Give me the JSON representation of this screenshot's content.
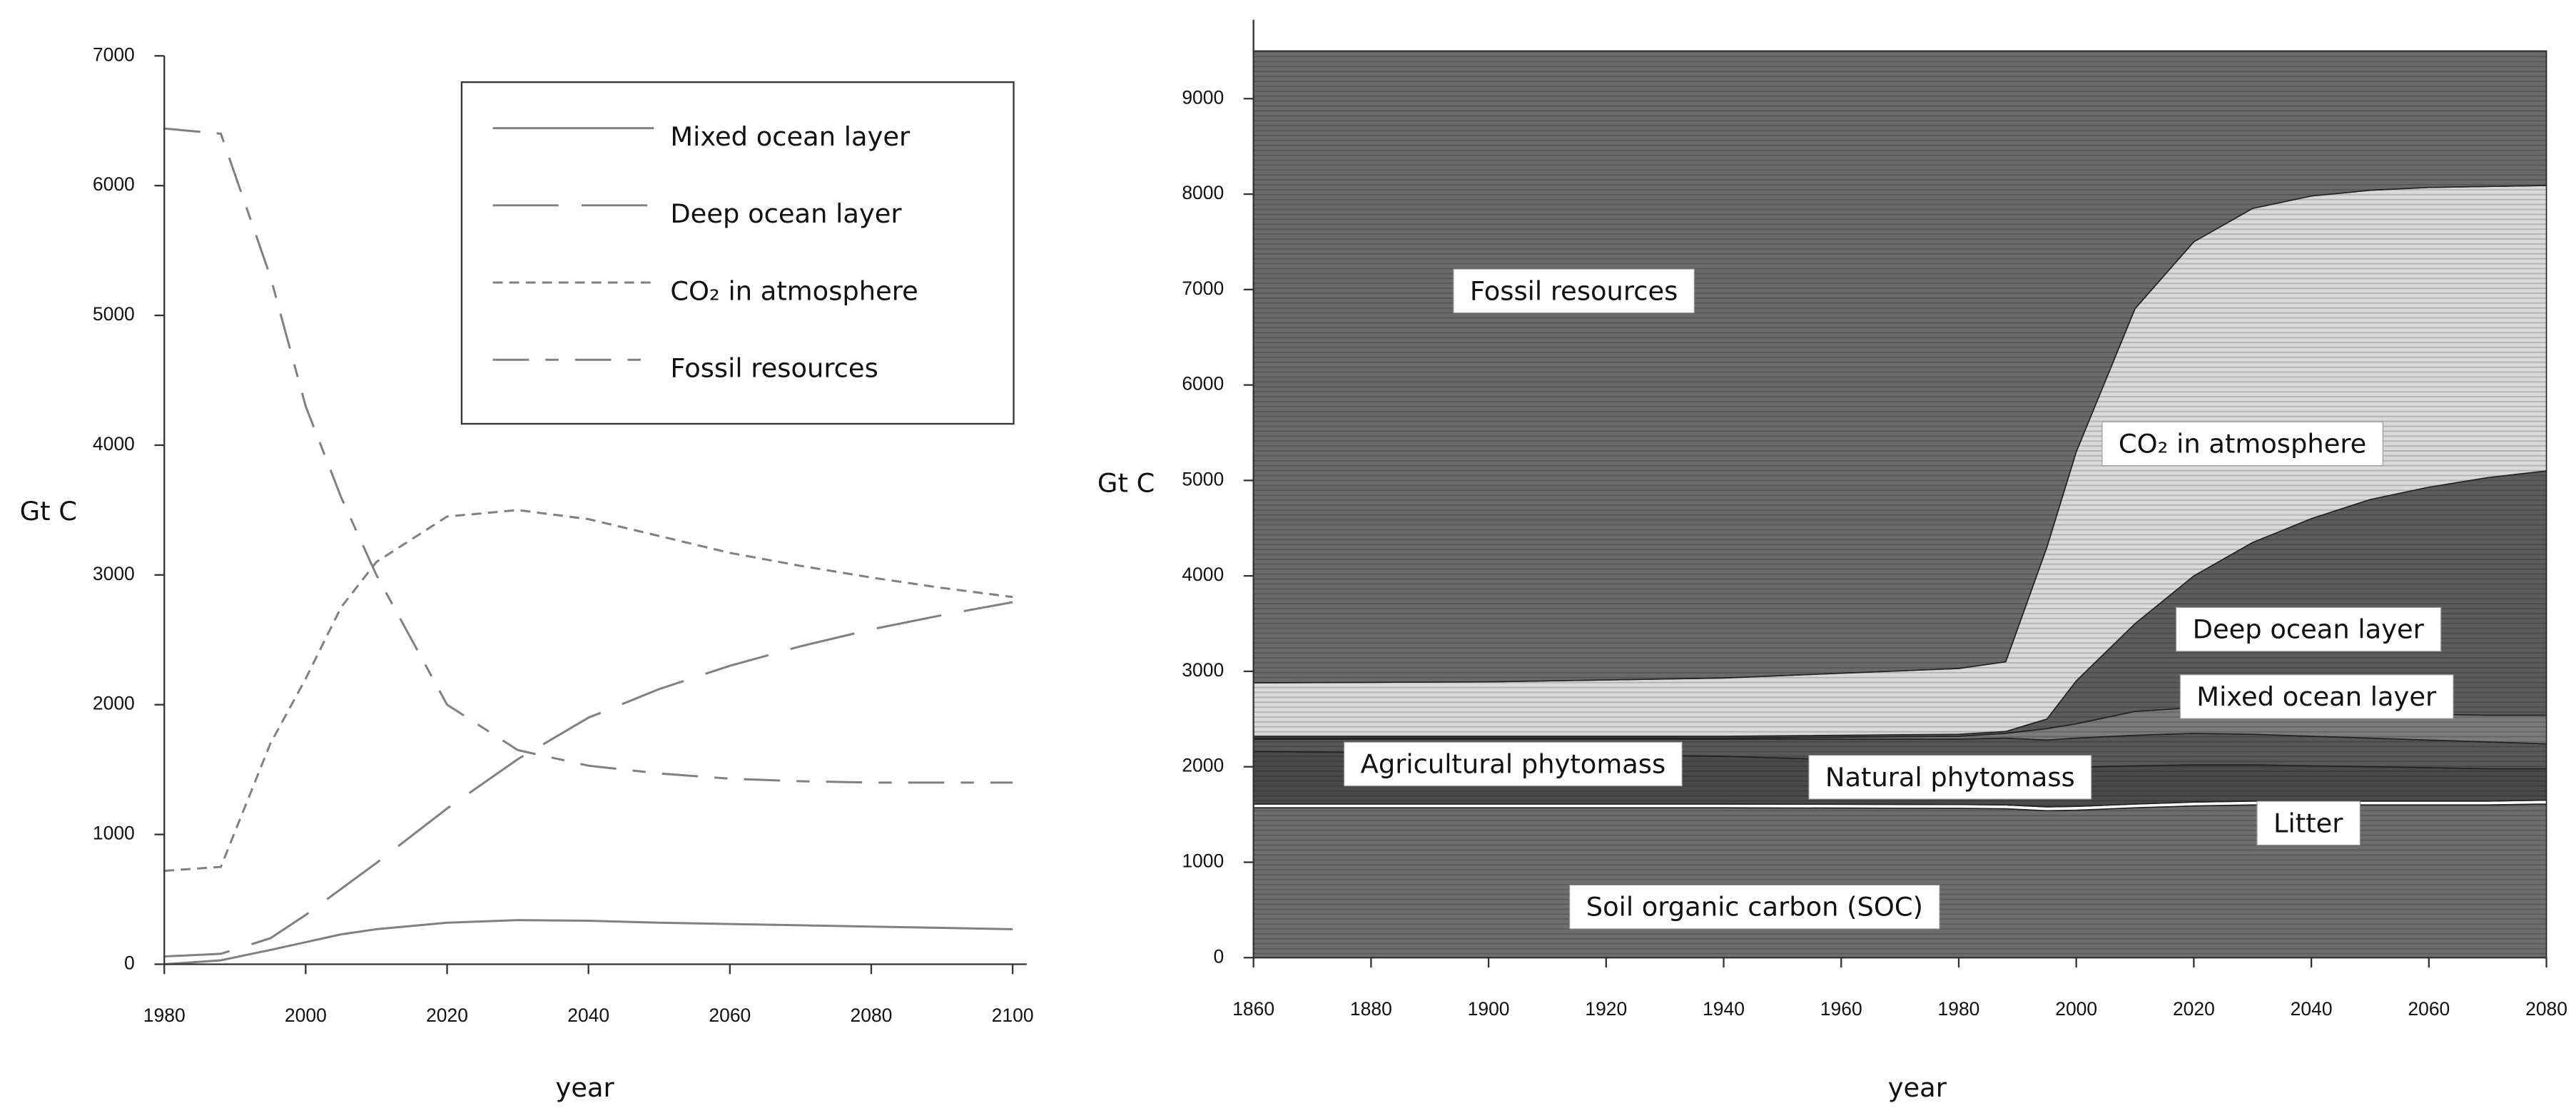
{
  "chart_data": [
    {
      "type": "line",
      "x": [
        1980,
        1988,
        1995,
        2000,
        2005,
        2010,
        2020,
        2030,
        2040,
        2050,
        2060,
        2070,
        2080,
        2090,
        2100
      ],
      "series": [
        {
          "name": "Mixed ocean layer",
          "color": "#808080",
          "dash": "none",
          "values": [
            0,
            30,
            110,
            170,
            230,
            270,
            320,
            340,
            335,
            320,
            310,
            300,
            290,
            280,
            270
          ]
        },
        {
          "name": "Deep ocean layer",
          "color": "#808080",
          "dash": "40 14",
          "values": [
            60,
            80,
            200,
            380,
            580,
            780,
            1200,
            1580,
            1900,
            2120,
            2300,
            2450,
            2580,
            2690,
            2790
          ]
        },
        {
          "name": "CO₂ in atmosphere",
          "color": "#808080",
          "dash": "6 4",
          "values": [
            720,
            750,
            1700,
            2200,
            2750,
            3100,
            3450,
            3500,
            3430,
            3300,
            3170,
            3070,
            2980,
            2900,
            2830
          ]
        },
        {
          "name": "Fossil resources",
          "color": "#808080",
          "dash": "22 10 8 10",
          "values": [
            6440,
            6400,
            5300,
            4300,
            3600,
            3000,
            2000,
            1650,
            1530,
            1470,
            1430,
            1410,
            1400,
            1400,
            1400
          ]
        }
      ],
      "xlim": [
        1980,
        2102
      ],
      "xticks": [
        1980,
        2000,
        2020,
        2040,
        2060,
        2080,
        2100
      ],
      "ylim": [
        0,
        7000
      ],
      "yticks": [
        0,
        1000,
        2000,
        3000,
        4000,
        5000,
        6000,
        7000
      ],
      "ylabel": "Gt C",
      "xlabel": "year",
      "legend": "upper right"
    },
    {
      "type": "stacked_area",
      "x": [
        1860,
        1900,
        1940,
        1980,
        1988,
        1995,
        2000,
        2010,
        2020,
        2030,
        2040,
        2050,
        2060,
        2070,
        2080
      ],
      "series": [
        {
          "name": "Soil organic carbon (SOC)",
          "color": "#6e6e6e",
          "values": [
            1570,
            1570,
            1570,
            1565,
            1560,
            1540,
            1545,
            1570,
            1590,
            1600,
            1600,
            1600,
            1600,
            1600,
            1610
          ]
        },
        {
          "name": "Litter",
          "color": "#ffffff",
          "values": [
            40,
            40,
            40,
            40,
            40,
            40,
            40,
            40,
            40,
            40,
            40,
            40,
            40,
            40,
            40
          ]
        },
        {
          "name": "Natural phytomass",
          "color": "#4a4a4a",
          "values": [
            550,
            530,
            500,
            430,
            420,
            410,
            410,
            400,
            390,
            380,
            370,
            360,
            350,
            340,
            330
          ]
        },
        {
          "name": "Agricultural phytomass",
          "color": "#575757",
          "values": [
            130,
            150,
            180,
            255,
            280,
            290,
            305,
            320,
            330,
            320,
            310,
            300,
            290,
            280,
            260
          ]
        },
        {
          "name": "Mixed ocean layer",
          "color": "#7c7c7c",
          "values": [
            10,
            10,
            10,
            30,
            50,
            120,
            150,
            250,
            270,
            270,
            270,
            270,
            270,
            280,
            300
          ]
        },
        {
          "name": "Deep ocean layer",
          "color": "#5c5c5c",
          "values": [
            20,
            20,
            20,
            20,
            20,
            100,
            450,
            920,
            1380,
            1740,
            2010,
            2230,
            2380,
            2490,
            2560
          ]
        },
        {
          "name": "CO₂ in atmosphere",
          "color": "#d9d9d9",
          "values": [
            560,
            570,
            610,
            690,
            730,
            1800,
            2400,
            3300,
            3500,
            3500,
            3380,
            3240,
            3140,
            3050,
            2990
          ]
        },
        {
          "name": "Fossil resources",
          "color": "#6a6a6a",
          "values": [
            6620,
            6610,
            6570,
            6470,
            6400,
            5200,
            4200,
            2700,
            2000,
            1650,
            1520,
            1460,
            1430,
            1420,
            1410
          ]
        }
      ],
      "xlim": [
        1860,
        2080
      ],
      "xticks": [
        1860,
        1880,
        1900,
        1920,
        1940,
        1960,
        1980,
        2000,
        2020,
        2040,
        2060,
        2080
      ],
      "ylim": [
        0,
        9500
      ],
      "yticks": [
        0,
        1000,
        2000,
        3000,
        4000,
        5000,
        6000,
        7000,
        8000,
        9000
      ],
      "ylabel": "Gt C",
      "xlabel": "year"
    }
  ]
}
